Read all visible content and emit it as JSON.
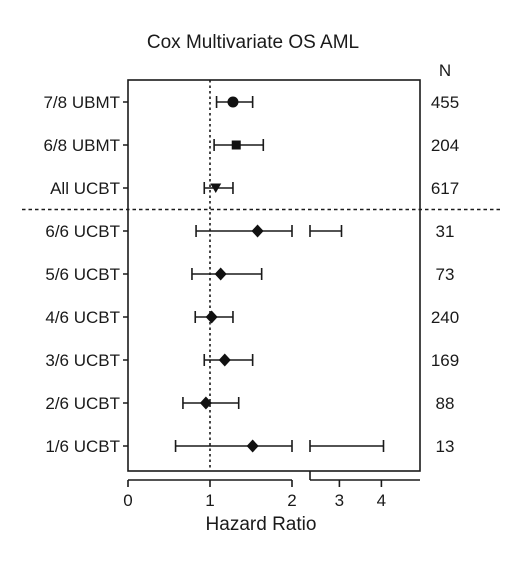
{
  "chart_data": {
    "type": "forest",
    "title": "Cox Multivariate OS AML",
    "xlabel": "Hazard Ratio",
    "n_header": "N",
    "axis_break": {
      "from": 2,
      "to": 2.3
    },
    "reference_line": 1,
    "x_ticks": [
      {
        "value": 0,
        "label": "0"
      },
      {
        "value": 1,
        "label": "1"
      },
      {
        "value": 2,
        "label": "2"
      },
      {
        "value": 3,
        "label": "3"
      },
      {
        "value": 4,
        "label": "4"
      }
    ],
    "groups_divider_after": "All UCBT",
    "rows": [
      {
        "label": "7/8 UBMT",
        "hr": 1.28,
        "lo": 1.08,
        "hi": 1.52,
        "n": "455",
        "marker": "circle"
      },
      {
        "label": "6/8 UBMT",
        "hr": 1.32,
        "lo": 1.05,
        "hi": 1.65,
        "n": "204",
        "marker": "square"
      },
      {
        "label": "All UCBT",
        "hr": 1.07,
        "lo": 0.93,
        "hi": 1.28,
        "n": "617",
        "marker": "triangle-down"
      },
      {
        "label": "6/6 UCBT",
        "hr": 1.58,
        "lo": 0.83,
        "hi": 3.05,
        "n": "31",
        "marker": "diamond"
      },
      {
        "label": "5/6 UCBT",
        "hr": 1.13,
        "lo": 0.78,
        "hi": 1.63,
        "n": "73",
        "marker": "diamond"
      },
      {
        "label": "4/6 UCBT",
        "hr": 1.02,
        "lo": 0.82,
        "hi": 1.28,
        "n": "240",
        "marker": "diamond"
      },
      {
        "label": "3/6 UCBT",
        "hr": 1.18,
        "lo": 0.93,
        "hi": 1.52,
        "n": "169",
        "marker": "diamond"
      },
      {
        "label": "2/6 UCBT",
        "hr": 0.95,
        "lo": 0.67,
        "hi": 1.35,
        "n": "88",
        "marker": "diamond"
      },
      {
        "label": "1/6 UCBT",
        "hr": 1.52,
        "lo": 0.58,
        "hi": 4.05,
        "n": "13",
        "marker": "diamond"
      }
    ]
  }
}
